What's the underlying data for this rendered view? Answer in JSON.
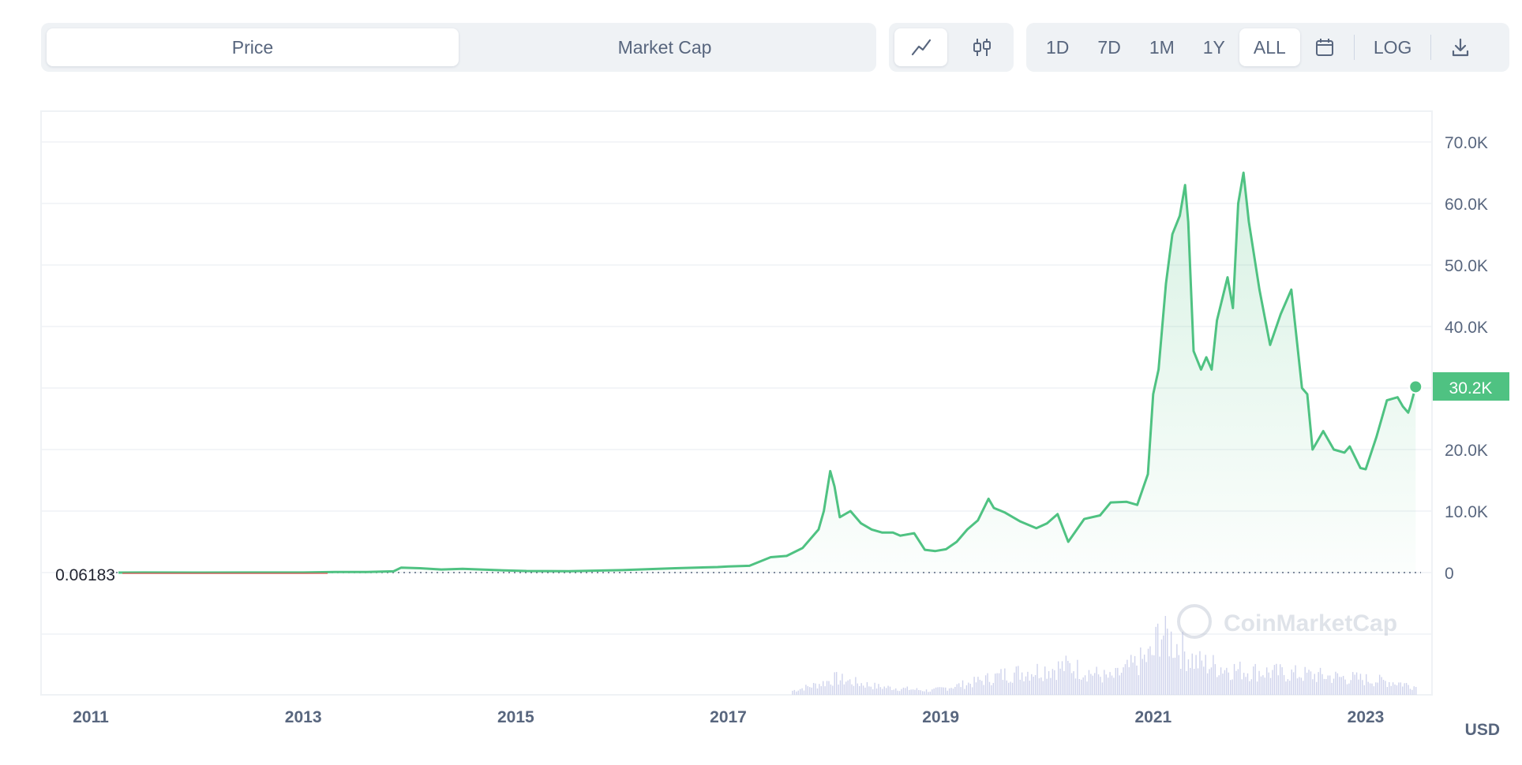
{
  "tabs": {
    "price": "Price",
    "market_cap": "Market Cap"
  },
  "chart_type_icons": [
    "line-chart-icon",
    "candlestick-icon"
  ],
  "ranges": [
    "1D",
    "7D",
    "1M",
    "1Y",
    "ALL"
  ],
  "active_range": "ALL",
  "calendar_icon": "calendar-icon",
  "log_label": "LOG",
  "download_icon": "download-icon",
  "currency_label": "USD",
  "watermark": "CoinMarketCap",
  "start_value_label": "0.06183",
  "current_price_label": "30.2K",
  "colors": {
    "line": "#4fc282",
    "start_line": "#ea3943",
    "badge": "#4fc282",
    "volume": "#cfd3ec",
    "grid": "#eff2f5",
    "text": "#58667e"
  },
  "chart_data": {
    "type": "area",
    "title": "",
    "xlabel": "",
    "ylabel": "",
    "y_ticks": [
      "0",
      "10.0K",
      "20.0K",
      "30.0K",
      "40.0K",
      "50.0K",
      "60.0K",
      "70.0K"
    ],
    "x_ticks": [
      "2011",
      "2013",
      "2015",
      "2017",
      "2019",
      "2021",
      "2023"
    ],
    "xlim": [
      2010.6,
      2023.5
    ],
    "ylim": [
      0,
      70000
    ],
    "grid": true,
    "legend": "none",
    "series": [
      {
        "x": [
          2010.6,
          2011.0,
          2011.5,
          2012.0,
          2012.5,
          2013.0,
          2013.3,
          2013.6,
          2013.85,
          2013.92,
          2014.1,
          2014.3,
          2014.5,
          2014.9,
          2015.1,
          2015.5,
          2016.0,
          2016.5,
          2016.9,
          2017.0,
          2017.2,
          2017.4,
          2017.55,
          2017.7,
          2017.85,
          2017.9,
          2017.96,
          2018.0,
          2018.05,
          2018.15,
          2018.25,
          2018.35,
          2018.45,
          2018.55,
          2018.62,
          2018.75,
          2018.85,
          2018.95,
          2019.05,
          2019.15,
          2019.25,
          2019.35,
          2019.45,
          2019.5,
          2019.6,
          2019.75,
          2019.9,
          2020.0,
          2020.1,
          2020.2,
          2020.35,
          2020.5,
          2020.6,
          2020.75,
          2020.85,
          2020.95,
          2021.0,
          2021.05,
          2021.12,
          2021.18,
          2021.25,
          2021.3,
          2021.33,
          2021.38,
          2021.45,
          2021.5,
          2021.55,
          2021.6,
          2021.7,
          2021.75,
          2021.8,
          2021.85,
          2021.9,
          2022.0,
          2022.1,
          2022.2,
          2022.3,
          2022.4,
          2022.45,
          2022.5,
          2022.6,
          2022.7,
          2022.8,
          2022.85,
          2022.95,
          2023.0,
          2023.1,
          2023.2,
          2023.3,
          2023.35,
          2023.4,
          2023.42,
          2023.47
        ],
        "values": [
          0.06,
          0.3,
          10,
          5,
          7,
          13,
          100,
          100,
          200,
          800,
          700,
          500,
          600,
          350,
          250,
          230,
          400,
          700,
          900,
          1000,
          1100,
          2500,
          2700,
          4000,
          7000,
          10000,
          16500,
          14000,
          9000,
          10000,
          8000,
          7000,
          6500,
          6500,
          6000,
          6400,
          3700,
          3500,
          3800,
          5000,
          7000,
          8500,
          12000,
          10500,
          9800,
          8300,
          7200,
          8000,
          9500,
          5000,
          8700,
          9300,
          11400,
          11500,
          11000,
          16000,
          29000,
          33000,
          47000,
          55000,
          58000,
          63000,
          57000,
          36000,
          33000,
          35000,
          33000,
          41000,
          48000,
          43000,
          60000,
          65000,
          57000,
          46000,
          37000,
          42000,
          46000,
          30000,
          29000,
          20000,
          23000,
          20000,
          19500,
          20500,
          17000,
          16800,
          22000,
          28000,
          28500,
          27000,
          26000,
          27000,
          30200
        ]
      }
    ],
    "volume_series": [
      {
        "x": [
          2017.6,
          2017.9,
          2018.0,
          2018.4,
          2018.9,
          2019.3,
          2019.6,
          2020.2,
          2020.6,
          2021.0,
          2021.05,
          2021.4,
          2021.8,
          2022.4,
          2022.9,
          2023.3,
          2023.47
        ],
        "values": [
          1,
          3,
          4,
          2,
          1,
          3,
          5,
          7,
          4,
          10,
          16,
          8,
          6,
          5,
          4,
          3,
          2
        ]
      }
    ]
  }
}
